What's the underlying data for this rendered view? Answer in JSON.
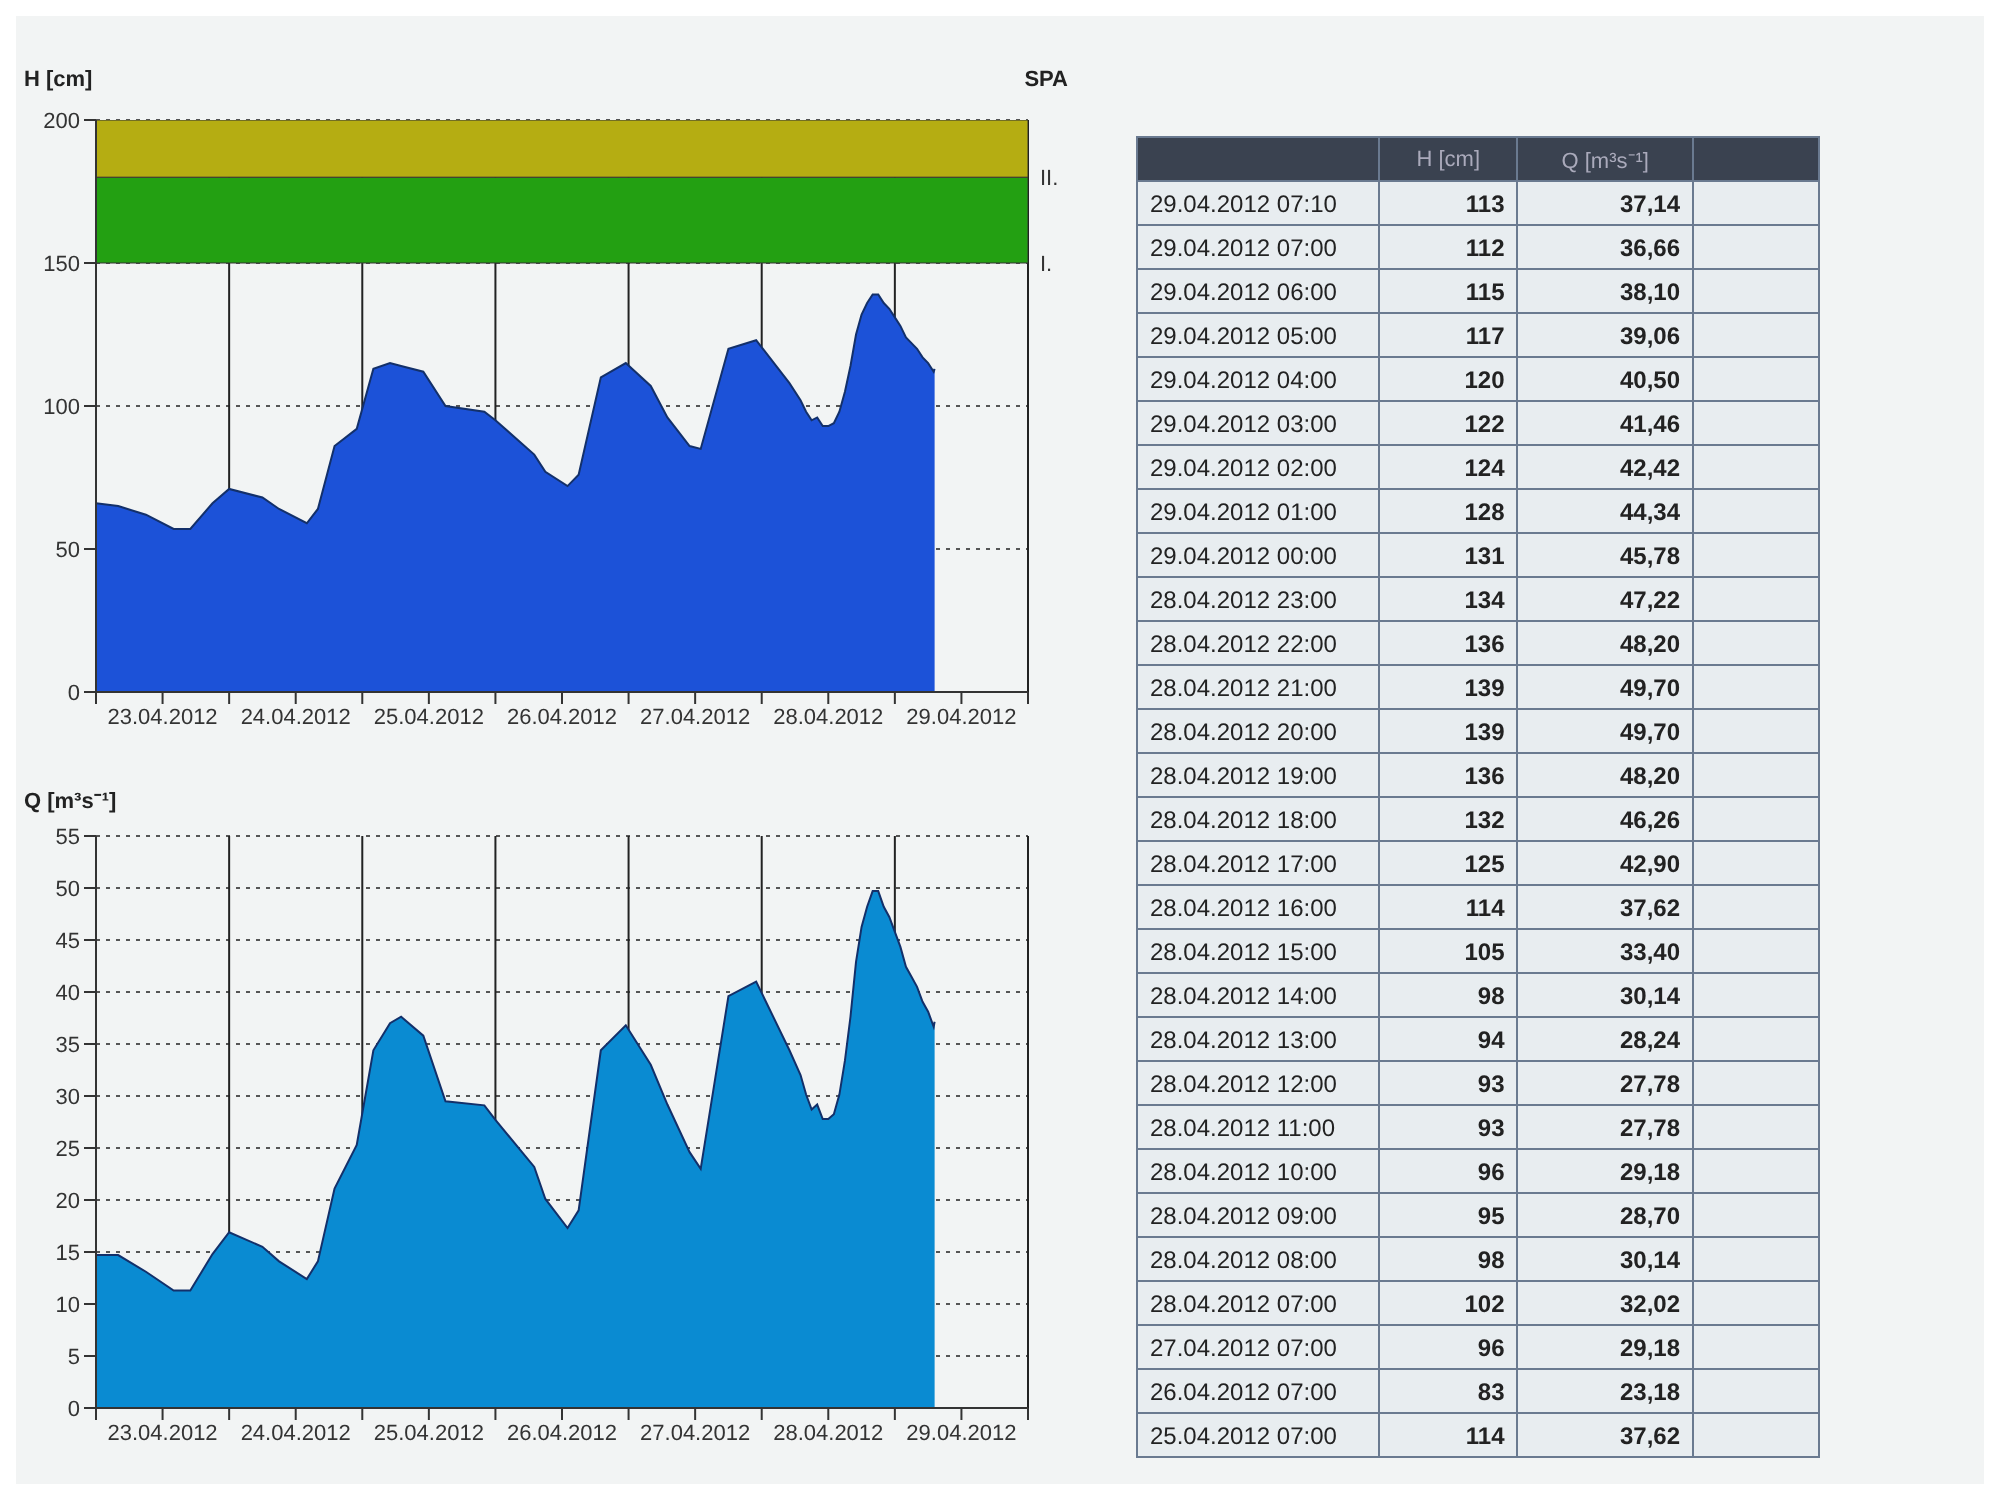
{
  "chart_data": [
    {
      "type": "area",
      "ylabel": "H [cm]",
      "annotations": [
        "SPA"
      ],
      "x": [
        "2012-04-23T00:00",
        "2012-04-23T04:00",
        "2012-04-23T09:00",
        "2012-04-23T14:00",
        "2012-04-23T17:00",
        "2012-04-23T21:00",
        "2012-04-24T00:00",
        "2012-04-24T06:00",
        "2012-04-24T09:00",
        "2012-04-24T14:00",
        "2012-04-24T16:00",
        "2012-04-24T19:00",
        "2012-04-24T23:00",
        "2012-04-25T02:00",
        "2012-04-25T05:00",
        "2012-04-25T07:00",
        "2012-04-25T11:00",
        "2012-04-25T15:00",
        "2012-04-25T22:00",
        "2012-04-26T00:00",
        "2012-04-26T07:00",
        "2012-04-26T09:00",
        "2012-04-26T13:00",
        "2012-04-26T15:00",
        "2012-04-26T19:00",
        "2012-04-26T23:30",
        "2012-04-27T04:00",
        "2012-04-27T07:00",
        "2012-04-27T11:00",
        "2012-04-27T13:00",
        "2012-04-27T18:00",
        "2012-04-27T23:00",
        "2012-04-28T05:00",
        "2012-04-28T07:00",
        "2012-04-28T08:00",
        "2012-04-28T09:00",
        "2012-04-28T10:00",
        "2012-04-28T11:00",
        "2012-04-28T12:00",
        "2012-04-28T13:00",
        "2012-04-28T14:00",
        "2012-04-28T15:00",
        "2012-04-28T16:00",
        "2012-04-28T17:00",
        "2012-04-28T18:00",
        "2012-04-28T19:00",
        "2012-04-28T20:00",
        "2012-04-28T21:00",
        "2012-04-28T22:00",
        "2012-04-28T23:00",
        "2012-04-29T00:00",
        "2012-04-29T01:00",
        "2012-04-29T02:00",
        "2012-04-29T03:00",
        "2012-04-29T04:00",
        "2012-04-29T05:00",
        "2012-04-29T06:00",
        "2012-04-29T07:00",
        "2012-04-29T07:10"
      ],
      "series": [
        {
          "color": "#1c52d8",
          "values": [
            66,
            65,
            62,
            57,
            57,
            66,
            71,
            68,
            64,
            59,
            64,
            86,
            92,
            113,
            115,
            114,
            112,
            100,
            98,
            95,
            83,
            77,
            72,
            76,
            110,
            115,
            107,
            96,
            86,
            85,
            120,
            123,
            108,
            102,
            98,
            95,
            96,
            93,
            93,
            94,
            98,
            105,
            114,
            125,
            132,
            136,
            139,
            139,
            136,
            134,
            131,
            128,
            124,
            122,
            120,
            117,
            115,
            112,
            113
          ]
        }
      ],
      "xlim": [
        "2012-04-23",
        "2012-04-30"
      ],
      "xticks": [
        {
          "value": "2012-04-23",
          "label": null
        },
        {
          "value": "2012-04-23T12:00",
          "label": "23.04.2012"
        },
        {
          "value": "2012-04-24",
          "label": null
        },
        {
          "value": "2012-04-24T12:00",
          "label": "24.04.2012"
        },
        {
          "value": "2012-04-25",
          "label": null
        },
        {
          "value": "2012-04-25T12:00",
          "label": "25.04.2012"
        },
        {
          "value": "2012-04-26",
          "label": null
        },
        {
          "value": "2012-04-26T12:00",
          "label": "26.04.2012"
        },
        {
          "value": "2012-04-27",
          "label": null
        },
        {
          "value": "2012-04-27T12:00",
          "label": "27.04.2012"
        },
        {
          "value": "2012-04-28",
          "label": null
        },
        {
          "value": "2012-04-28T12:00",
          "label": "28.04.2012"
        },
        {
          "value": "2012-04-29",
          "label": null
        },
        {
          "value": "2012-04-29T12:00",
          "label": "29.04.2012"
        },
        {
          "value": "2012-04-30",
          "label": null
        }
      ],
      "ylim": [
        0,
        200
      ],
      "yticks": [
        0,
        50,
        100,
        150,
        200
      ],
      "bands": [
        {
          "axis": "y",
          "from": 150,
          "to": 180,
          "label": "I.",
          "color": "#23a012"
        },
        {
          "axis": "y",
          "from": 180,
          "to": 200,
          "label": "II.",
          "color": "#b5ad12"
        }
      ],
      "grid": true,
      "legend": false
    },
    {
      "type": "area",
      "ylabel": "Q [m³s⁻¹]",
      "x": [
        "2012-04-23T00:00",
        "2012-04-23T04:00",
        "2012-04-23T09:00",
        "2012-04-23T14:00",
        "2012-04-23T17:00",
        "2012-04-23T21:00",
        "2012-04-24T00:00",
        "2012-04-24T06:00",
        "2012-04-24T09:00",
        "2012-04-24T14:00",
        "2012-04-24T16:00",
        "2012-04-24T19:00",
        "2012-04-24T23:00",
        "2012-04-25T02:00",
        "2012-04-25T05:00",
        "2012-04-25T07:00",
        "2012-04-25T11:00",
        "2012-04-25T15:00",
        "2012-04-25T22:00",
        "2012-04-26T00:00",
        "2012-04-26T07:00",
        "2012-04-26T09:00",
        "2012-04-26T13:00",
        "2012-04-26T15:00",
        "2012-04-26T19:00",
        "2012-04-26T23:30",
        "2012-04-27T04:00",
        "2012-04-27T07:00",
        "2012-04-27T11:00",
        "2012-04-27T13:00",
        "2012-04-27T18:00",
        "2012-04-27T23:00",
        "2012-04-28T05:00",
        "2012-04-28T07:00",
        "2012-04-28T08:00",
        "2012-04-28T09:00",
        "2012-04-28T10:00",
        "2012-04-28T11:00",
        "2012-04-28T12:00",
        "2012-04-28T13:00",
        "2012-04-28T14:00",
        "2012-04-28T15:00",
        "2012-04-28T16:00",
        "2012-04-28T17:00",
        "2012-04-28T18:00",
        "2012-04-28T19:00",
        "2012-04-28T20:00",
        "2012-04-28T21:00",
        "2012-04-28T22:00",
        "2012-04-28T23:00",
        "2012-04-29T00:00",
        "2012-04-29T01:00",
        "2012-04-29T02:00",
        "2012-04-29T03:00",
        "2012-04-29T04:00",
        "2012-04-29T05:00",
        "2012-04-29T06:00",
        "2012-04-29T07:00",
        "2012-04-29T07:10"
      ],
      "series": [
        {
          "color": "#0a8bd2",
          "values": [
            14.7,
            14.7,
            13.1,
            11.3,
            11.3,
            14.8,
            16.9,
            15.5,
            14.1,
            12.4,
            14.1,
            21.1,
            25.3,
            34.4,
            37.0,
            37.62,
            35.8,
            29.5,
            29.1,
            27.7,
            23.18,
            20.1,
            17.3,
            19.0,
            34.4,
            36.8,
            33.0,
            29.18,
            24.6,
            23.0,
            39.6,
            41.0,
            34.4,
            32.02,
            30.14,
            28.7,
            29.18,
            27.78,
            27.78,
            28.24,
            30.14,
            33.4,
            37.62,
            42.9,
            46.26,
            48.2,
            49.7,
            49.7,
            48.2,
            47.22,
            45.78,
            44.34,
            42.42,
            41.46,
            40.5,
            39.06,
            38.1,
            36.66,
            37.14
          ]
        }
      ],
      "xlim": [
        "2012-04-23",
        "2012-04-30"
      ],
      "xticks": [
        {
          "value": "2012-04-23",
          "label": null
        },
        {
          "value": "2012-04-23T12:00",
          "label": "23.04.2012"
        },
        {
          "value": "2012-04-24",
          "label": null
        },
        {
          "value": "2012-04-24T12:00",
          "label": "24.04.2012"
        },
        {
          "value": "2012-04-25",
          "label": null
        },
        {
          "value": "2012-04-25T12:00",
          "label": "25.04.2012"
        },
        {
          "value": "2012-04-26",
          "label": null
        },
        {
          "value": "2012-04-26T12:00",
          "label": "26.04.2012"
        },
        {
          "value": "2012-04-27",
          "label": null
        },
        {
          "value": "2012-04-27T12:00",
          "label": "27.04.2012"
        },
        {
          "value": "2012-04-28",
          "label": null
        },
        {
          "value": "2012-04-28T12:00",
          "label": "28.04.2012"
        },
        {
          "value": "2012-04-29",
          "label": null
        },
        {
          "value": "2012-04-29T12:00",
          "label": "29.04.2012"
        },
        {
          "value": "2012-04-30",
          "label": null
        }
      ],
      "ylim": [
        0,
        55
      ],
      "yticks": [
        0,
        5,
        10,
        15,
        20,
        25,
        30,
        35,
        40,
        45,
        50,
        55
      ],
      "grid": true,
      "legend": false
    },
    {
      "type": "other",
      "data_labels": true,
      "categories": [
        "29.04.2012 07:10",
        "29.04.2012 07:00",
        "29.04.2012 06:00",
        "29.04.2012 05:00",
        "29.04.2012 04:00",
        "29.04.2012 03:00",
        "29.04.2012 02:00",
        "29.04.2012 01:00",
        "29.04.2012 00:00",
        "28.04.2012 23:00",
        "28.04.2012 22:00",
        "28.04.2012 21:00",
        "28.04.2012 20:00",
        "28.04.2012 19:00",
        "28.04.2012 18:00",
        "28.04.2012 17:00",
        "28.04.2012 16:00",
        "28.04.2012 15:00",
        "28.04.2012 14:00",
        "28.04.2012 13:00",
        "28.04.2012 12:00",
        "28.04.2012 11:00",
        "28.04.2012 10:00",
        "28.04.2012 09:00",
        "28.04.2012 08:00",
        "28.04.2012 07:00",
        "27.04.2012 07:00",
        "26.04.2012 07:00",
        "25.04.2012 07:00"
      ],
      "series": [
        {
          "name": "H [cm]",
          "values": [
            113,
            112,
            115,
            117,
            120,
            122,
            124,
            128,
            131,
            134,
            136,
            139,
            139,
            136,
            132,
            125,
            114,
            105,
            98,
            94,
            93,
            93,
            96,
            95,
            98,
            102,
            96,
            83,
            114
          ]
        },
        {
          "name": "Q [m³s⁻¹]",
          "values": [
            37.14,
            36.66,
            38.1,
            39.06,
            40.5,
            41.46,
            42.42,
            44.34,
            45.78,
            47.22,
            48.2,
            49.7,
            49.7,
            48.2,
            46.26,
            42.9,
            37.62,
            33.4,
            30.14,
            28.24,
            27.78,
            27.78,
            29.18,
            28.7,
            30.14,
            32.02,
            29.18,
            23.18,
            37.62
          ],
          "value_labels": [
            "37,14",
            "36,66",
            "38,10",
            "39,06",
            "40,50",
            "41,46",
            "42,42",
            "44,34",
            "45,78",
            "47,22",
            "48,20",
            "49,70",
            "49,70",
            "48,20",
            "46,26",
            "42,90",
            "37,62",
            "33,40",
            "30,14",
            "28,24",
            "27,78",
            "27,78",
            "29,18",
            "28,70",
            "30,14",
            "32,02",
            "29,18",
            "23,18",
            "37,62"
          ]
        }
      ]
    }
  ]
}
